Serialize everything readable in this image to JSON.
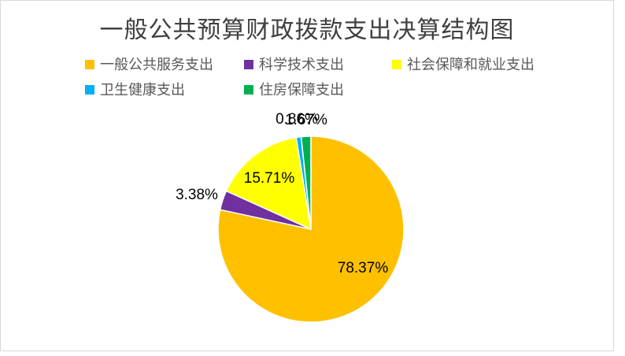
{
  "title": "一般公共预算财政拨款支出决算结构图",
  "chart_data": {
    "type": "pie",
    "title": "一般公共预算财政拨款支出决算结构图",
    "categories": [
      "一般公共服务支出",
      "科学技术支出",
      "社会保障和就业支出",
      "卫生健康支出",
      "住房保障支出"
    ],
    "values": [
      78.37,
      3.38,
      15.71,
      0.86,
      1.67
    ],
    "unit": "%",
    "labels": [
      "78.37%",
      "3.38%",
      "15.71%",
      "0.86%",
      "1.67%"
    ],
    "colors": [
      "#FFC000",
      "#7030A0",
      "#FFFF00",
      "#00B0F0",
      "#00B050"
    ],
    "start_angle_deg": 0,
    "direction": "clockwise",
    "legend_position": "top",
    "data_label_color": "#000000",
    "slice_border_color": "#FFFFFF",
    "title_color": "#404040",
    "legend_text_color": "#595959"
  }
}
